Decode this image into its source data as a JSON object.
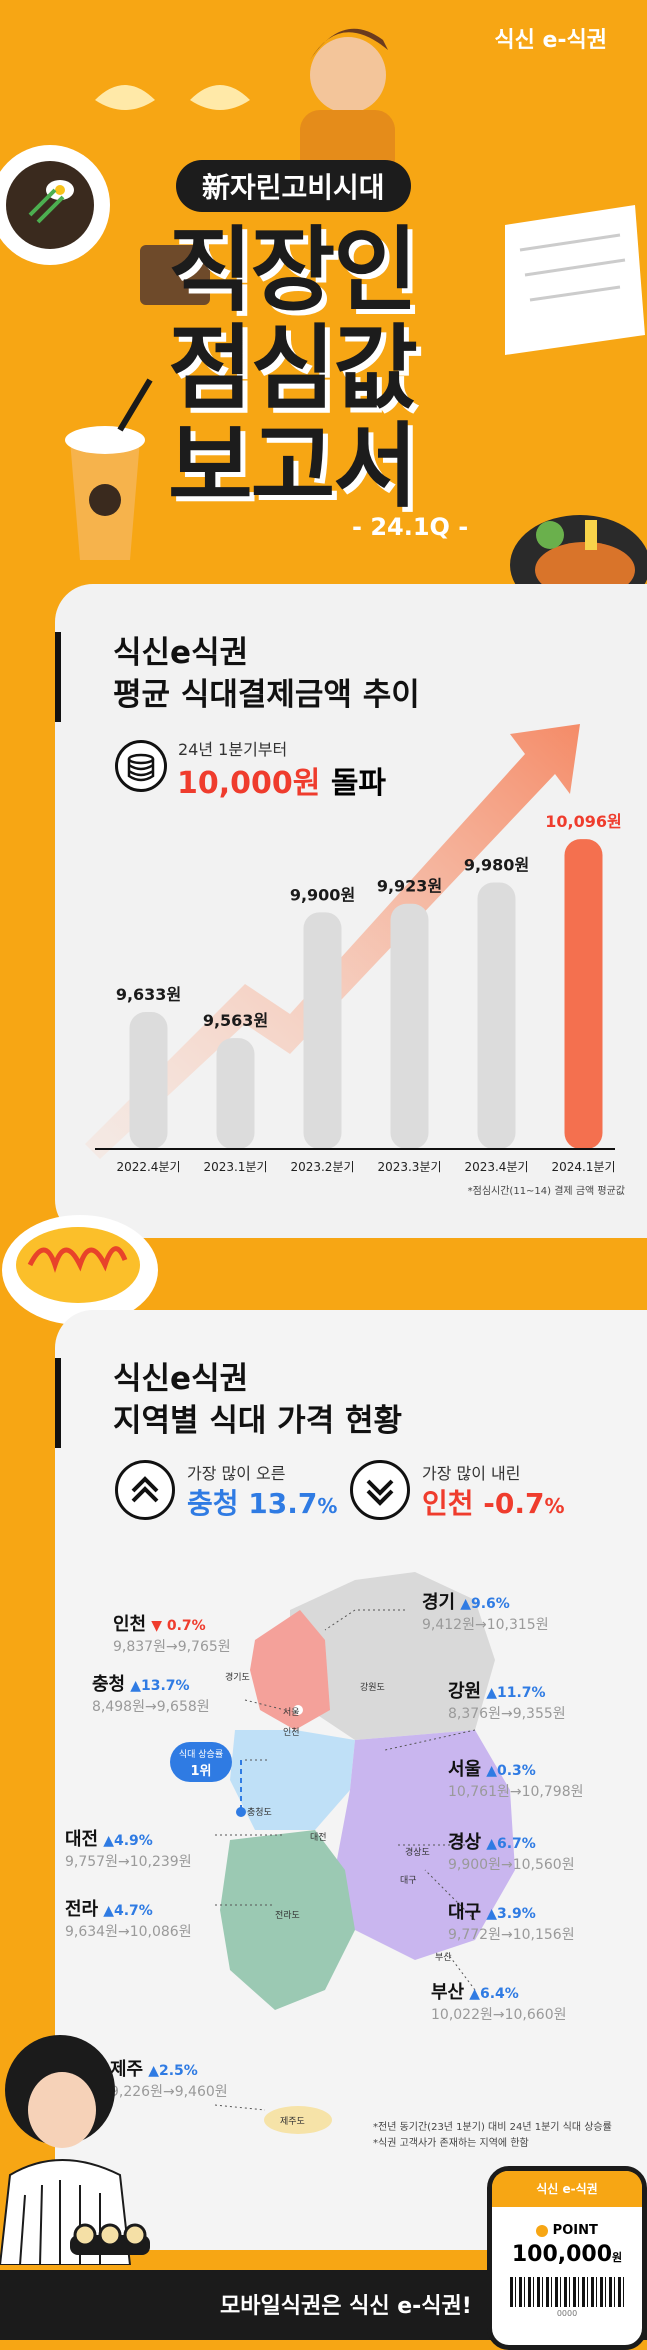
{
  "brand": "식신 e-식권",
  "header": {
    "tagline": "新자린고비시대",
    "title_lines": [
      "직장인",
      "점심값",
      "보고서"
    ],
    "quarter": "- 24.1Q -"
  },
  "section1": {
    "title_line1": "식신e식권",
    "title_line2": "평균 식대결제금액 추이",
    "highlight_small": "24년 1분기부터",
    "highlight_amount": "10,000원",
    "highlight_suffix": "돌파",
    "footnote": "*점심시간(11~14) 결제 금액 평균값"
  },
  "chart_data": {
    "type": "bar",
    "categories": [
      "2022.4분기",
      "2023.1분기",
      "2023.2분기",
      "2023.3분기",
      "2023.4분기",
      "2024.1분기"
    ],
    "values": [
      9633,
      9563,
      9900,
      9923,
      9980,
      10096
    ],
    "value_labels": [
      "9,633원",
      "9,563원",
      "9,900원",
      "9,923원",
      "9,980원",
      "10,096원"
    ],
    "colors": [
      "#dcdcdc",
      "#dcdcdc",
      "#dcdcdc",
      "#dcdcdc",
      "#dcdcdc",
      "#f4704f"
    ]
  },
  "section2": {
    "title_line1": "식신e식권",
    "title_line2": "지역별 식대 가격 현황",
    "most_up_label": "가장 많이 오른",
    "most_up_value": "충청 13.7",
    "most_up_unit": "%",
    "most_down_label": "가장 많이 내린",
    "most_down_value": "인천 -0.7",
    "most_down_unit": "%",
    "rank_badge_top": "식대 상승률",
    "rank_badge_bottom": "1위",
    "footnote1": "*전년 동기간(23년 1분기) 대비 24년 1분기 식대 상승률",
    "footnote2": "*식권 고객사가 존재하는 지역에 한함",
    "regions": [
      {
        "name": "인천",
        "change": "▼ 0.7%",
        "from": "9,837원",
        "to": "9,765원"
      },
      {
        "name": "충청",
        "change": "▲13.7%",
        "from": "8,498원",
        "to": "9,658원"
      },
      {
        "name": "대전",
        "change": "▲4.9%",
        "from": "9,757원",
        "to": "10,239원"
      },
      {
        "name": "전라",
        "change": "▲4.7%",
        "from": "9,634원",
        "to": "10,086원"
      },
      {
        "name": "제주",
        "change": "▲2.5%",
        "from": "9,226원",
        "to": "9,460원"
      },
      {
        "name": "경기",
        "change": "▲9.6%",
        "from": "9,412원",
        "to": "10,315원"
      },
      {
        "name": "강원",
        "change": "▲11.7%",
        "from": "8,376원",
        "to": "9,355원"
      },
      {
        "name": "서울",
        "change": "▲0.3%",
        "from": "10,761원",
        "to": "10,798원"
      },
      {
        "name": "경상",
        "change": "▲6.7%",
        "from": "9,900원",
        "to": "10,560원"
      },
      {
        "name": "대구",
        "change": "▲3.9%",
        "from": "9,772원",
        "to": "10,156원"
      },
      {
        "name": "부산",
        "change": "▲6.4%",
        "from": "10,022원",
        "to": "10,660원"
      }
    ],
    "map_labels": [
      "경기도",
      "강원도",
      "서울",
      "인천",
      "충청도",
      "대전",
      "경상도",
      "대구",
      "전라도",
      "부산",
      "제주도"
    ]
  },
  "phone": {
    "brand": "식신 e-식권",
    "point_label": "POINT",
    "point_value": "100,000",
    "point_unit": "원",
    "barcode_text": "0000"
  },
  "footer": {
    "text": "모바일식권은 식신 e-식권!"
  }
}
